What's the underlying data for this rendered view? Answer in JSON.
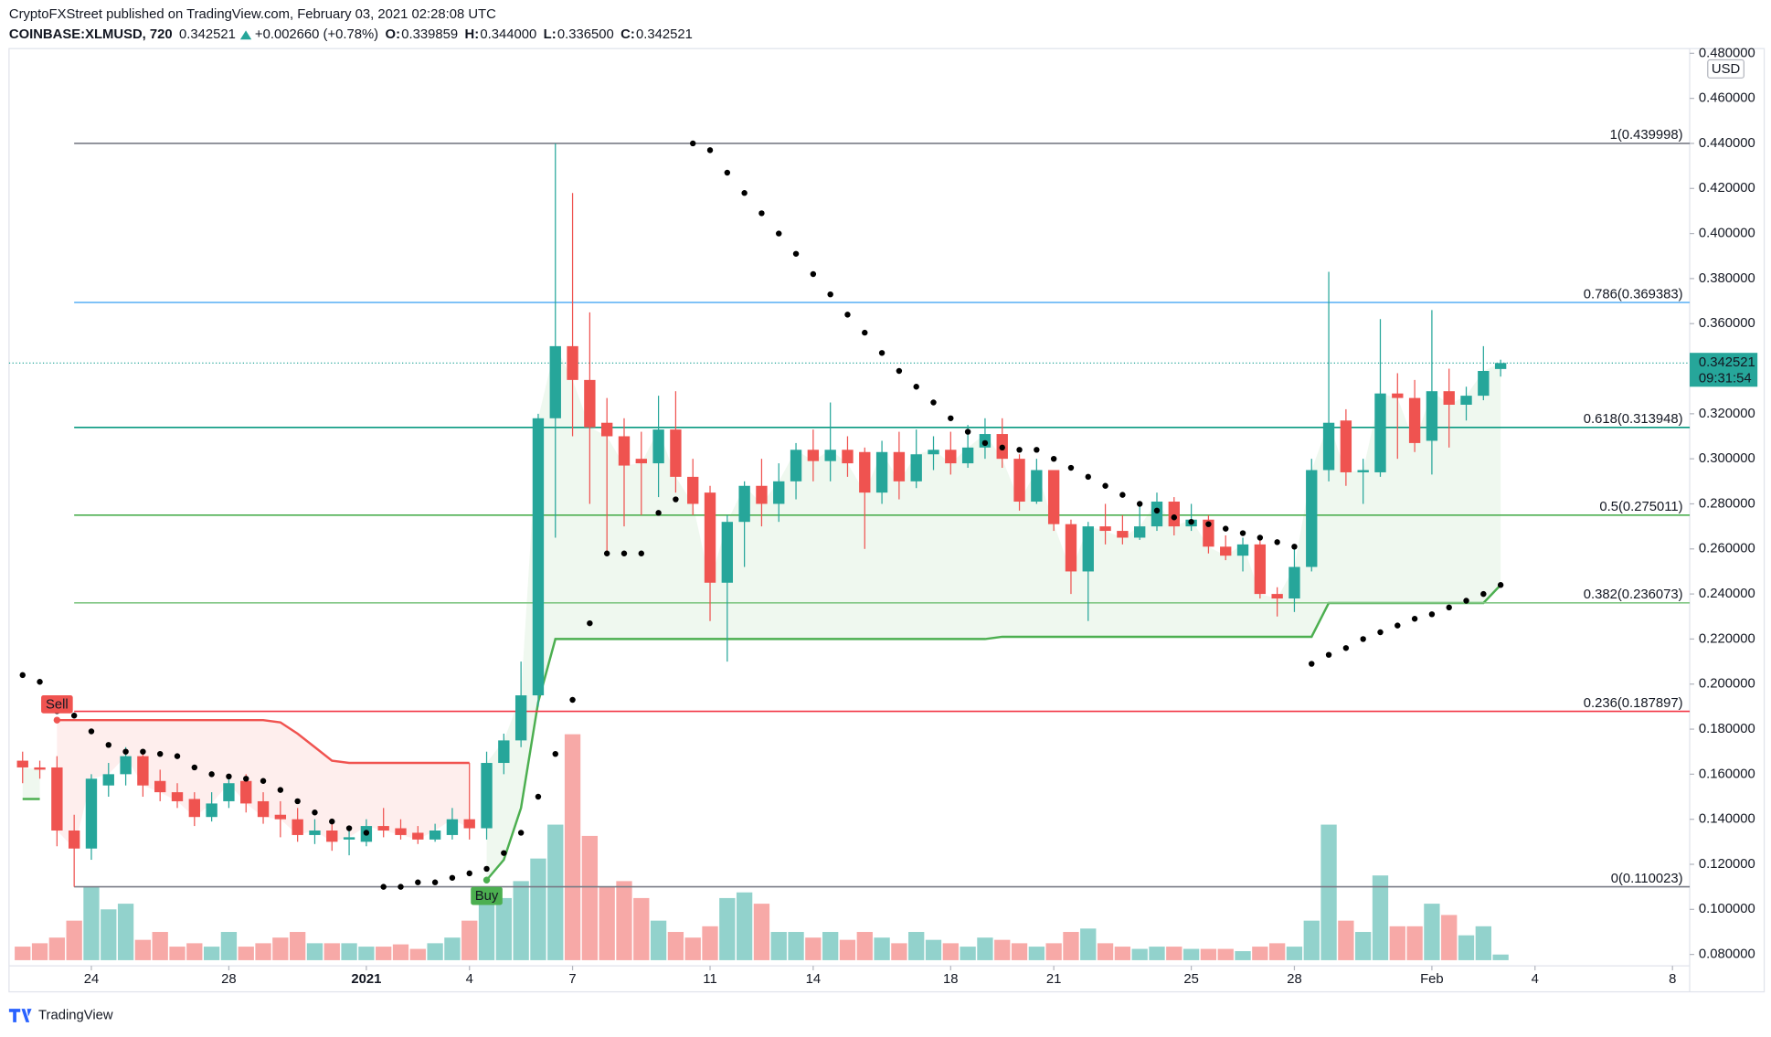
{
  "header": {
    "publisher": "CryptoFXStreet published on TradingView.com, February 03, 2021 02:28:08 UTC",
    "symbol": "COINBASE:XLMUSD, 720",
    "last": "0.342521",
    "change": "+0.002660 (+0.78%)",
    "o_label": "O:",
    "o": "0.339859",
    "h_label": "H:",
    "h": "0.344000",
    "l_label": "L:",
    "l": "0.336500",
    "c_label": "C:",
    "c": "0.342521"
  },
  "footer": {
    "brand": "TradingView"
  },
  "chart_data": {
    "type": "candlestick",
    "currency": "USD",
    "price_label": "0.342521",
    "countdown": "09:31:54",
    "up_color": "#26a69a",
    "down_color": "#ef5350",
    "ylim": [
      0.0634,
      0.4821
    ],
    "xlim": [
      -0.79,
      97
    ],
    "yticks": [
      {
        "value": 0.08,
        "label": "0.080000"
      },
      {
        "value": 0.1,
        "label": "0.100000"
      },
      {
        "value": 0.12,
        "label": "0.120000"
      },
      {
        "value": 0.14,
        "label": "0.140000"
      },
      {
        "value": 0.16,
        "label": "0.160000"
      },
      {
        "value": 0.18,
        "label": "0.180000"
      },
      {
        "value": 0.2,
        "label": "0.200000"
      },
      {
        "value": 0.22,
        "label": "0.220000"
      },
      {
        "value": 0.24,
        "label": "0.240000"
      },
      {
        "value": 0.26,
        "label": "0.260000"
      },
      {
        "value": 0.28,
        "label": "0.280000"
      },
      {
        "value": 0.3,
        "label": "0.300000"
      },
      {
        "value": 0.32,
        "label": "0.320000"
      },
      {
        "value": 0.34,
        "label": "0.340000"
      },
      {
        "value": 0.36,
        "label": "0.360000"
      },
      {
        "value": 0.38,
        "label": "0.380000"
      },
      {
        "value": 0.4,
        "label": "0.400000"
      },
      {
        "value": 0.42,
        "label": "0.420000"
      },
      {
        "value": 0.44,
        "label": "0.440000"
      },
      {
        "value": 0.46,
        "label": "0.460000"
      },
      {
        "value": 0.48,
        "label": "0.480000"
      }
    ],
    "xticks": [
      {
        "value": 4,
        "label": "24"
      },
      {
        "value": 12,
        "label": "28"
      },
      {
        "value": 20,
        "label": "2021",
        "bold": true
      },
      {
        "value": 26,
        "label": "4"
      },
      {
        "value": 32,
        "label": "7"
      },
      {
        "value": 40,
        "label": "11"
      },
      {
        "value": 46,
        "label": "14"
      },
      {
        "value": 54,
        "label": "18"
      },
      {
        "value": 60,
        "label": "21"
      },
      {
        "value": 68,
        "label": "25"
      },
      {
        "value": 74,
        "label": "28"
      },
      {
        "value": 82,
        "label": "Feb"
      },
      {
        "value": 88,
        "label": "4"
      },
      {
        "value": 96,
        "label": "8"
      }
    ],
    "open": [
      0.166,
      0.163,
      0.163,
      0.135,
      0.127,
      0.155,
      0.16,
      0.168,
      0.157,
      0.152,
      0.149,
      0.141,
      0.148,
      0.157,
      0.148,
      0.142,
      0.14,
      0.133,
      0.135,
      0.131,
      0.13,
      0.137,
      0.136,
      0.134,
      0.131,
      0.133,
      0.14,
      0.136,
      0.165,
      0.175,
      0.195,
      0.318,
      0.35,
      0.335,
      0.316,
      0.31,
      0.3,
      0.298,
      0.313,
      0.292,
      0.285,
      0.245,
      0.272,
      0.288,
      0.28,
      0.29,
      0.304,
      0.299,
      0.304,
      0.303,
      0.285,
      0.303,
      0.29,
      0.302,
      0.304,
      0.298,
      0.305,
      0.311,
      0.3,
      0.281,
      0.295,
      0.271,
      0.25,
      0.27,
      0.268,
      0.265,
      0.27,
      0.281,
      0.27,
      0.273,
      0.261,
      0.257,
      0.262,
      0.24,
      0.238,
      0.252,
      0.295,
      0.317,
      0.294,
      0.294,
      0.329,
      0.327,
      0.308,
      0.33,
      0.324,
      0.328,
      0.339859
    ],
    "high": [
      0.17,
      0.166,
      0.168,
      0.142,
      0.16,
      0.165,
      0.172,
      0.17,
      0.162,
      0.156,
      0.152,
      0.152,
      0.16,
      0.16,
      0.152,
      0.148,
      0.145,
      0.14,
      0.138,
      0.135,
      0.14,
      0.145,
      0.14,
      0.137,
      0.138,
      0.145,
      0.165,
      0.17,
      0.178,
      0.21,
      0.32,
      0.44,
      0.418,
      0.365,
      0.327,
      0.318,
      0.312,
      0.328,
      0.33,
      0.3,
      0.288,
      0.275,
      0.29,
      0.3,
      0.298,
      0.307,
      0.313,
      0.325,
      0.31,
      0.305,
      0.308,
      0.312,
      0.313,
      0.31,
      0.312,
      0.315,
      0.318,
      0.318,
      0.302,
      0.3,
      0.295,
      0.273,
      0.272,
      0.28,
      0.275,
      0.28,
      0.285,
      0.283,
      0.28,
      0.275,
      0.266,
      0.265,
      0.264,
      0.243,
      0.262,
      0.3,
      0.383,
      0.322,
      0.3,
      0.362,
      0.338,
      0.335,
      0.366,
      0.34,
      0.332,
      0.35,
      0.344
    ],
    "low": [
      0.156,
      0.158,
      0.128,
      0.11,
      0.122,
      0.15,
      0.155,
      0.15,
      0.148,
      0.145,
      0.137,
      0.139,
      0.145,
      0.143,
      0.138,
      0.132,
      0.13,
      0.129,
      0.126,
      0.124,
      0.128,
      0.132,
      0.131,
      0.129,
      0.13,
      0.131,
      0.131,
      0.131,
      0.16,
      0.172,
      0.19,
      0.265,
      0.31,
      0.28,
      0.258,
      0.27,
      0.275,
      0.283,
      0.285,
      0.275,
      0.228,
      0.21,
      0.252,
      0.27,
      0.272,
      0.282,
      0.29,
      0.29,
      0.292,
      0.26,
      0.28,
      0.282,
      0.287,
      0.295,
      0.293,
      0.296,
      0.3,
      0.296,
      0.277,
      0.28,
      0.268,
      0.24,
      0.228,
      0.262,
      0.262,
      0.264,
      0.268,
      0.266,
      0.268,
      0.258,
      0.255,
      0.25,
      0.238,
      0.23,
      0.232,
      0.25,
      0.29,
      0.288,
      0.28,
      0.292,
      0.3,
      0.303,
      0.293,
      0.305,
      0.317,
      0.326,
      0.3365
    ],
    "close": [
      0.163,
      0.162,
      0.135,
      0.127,
      0.158,
      0.16,
      0.168,
      0.155,
      0.152,
      0.148,
      0.141,
      0.147,
      0.156,
      0.147,
      0.141,
      0.14,
      0.133,
      0.135,
      0.13,
      0.132,
      0.137,
      0.135,
      0.133,
      0.131,
      0.135,
      0.14,
      0.136,
      0.165,
      0.175,
      0.195,
      0.318,
      0.35,
      0.335,
      0.314,
      0.31,
      0.297,
      0.298,
      0.313,
      0.292,
      0.28,
      0.245,
      0.272,
      0.288,
      0.28,
      0.29,
      0.304,
      0.299,
      0.304,
      0.298,
      0.285,
      0.303,
      0.29,
      0.302,
      0.304,
      0.298,
      0.305,
      0.311,
      0.3,
      0.281,
      0.295,
      0.271,
      0.25,
      0.27,
      0.268,
      0.265,
      0.27,
      0.281,
      0.27,
      0.273,
      0.261,
      0.257,
      0.262,
      0.24,
      0.238,
      0.252,
      0.295,
      0.316,
      0.294,
      0.295,
      0.329,
      0.327,
      0.307,
      0.33,
      0.324,
      0.328,
      0.339,
      0.342521
    ],
    "volume": [
      12,
      15,
      20,
      35,
      65,
      45,
      50,
      18,
      25,
      12,
      15,
      12,
      25,
      12,
      15,
      20,
      25,
      15,
      15,
      15,
      12,
      12,
      14,
      10,
      15,
      20,
      35,
      50,
      55,
      70,
      90,
      120,
      200,
      110,
      65,
      70,
      55,
      35,
      25,
      20,
      30,
      55,
      60,
      50,
      25,
      25,
      20,
      25,
      18,
      25,
      20,
      15,
      25,
      18,
      15,
      12,
      20,
      18,
      15,
      12,
      15,
      25,
      28,
      15,
      12,
      10,
      12,
      12,
      10,
      10,
      10,
      8,
      12,
      15,
      12,
      35,
      120,
      35,
      25,
      75,
      30,
      30,
      50,
      40,
      22,
      30,
      5
    ],
    "psar": [
      0.204,
      0.201,
      0.188,
      0.186,
      0.179,
      0.173,
      0.17,
      0.17,
      0.169,
      0.168,
      0.163,
      0.16,
      0.159,
      0.158,
      0.157,
      0.153,
      0.148,
      0.143,
      0.139,
      0.136,
      0.134,
      0.11,
      0.11,
      0.112,
      0.112,
      0.114,
      0.116,
      0.118,
      0.125,
      0.134,
      0.15,
      0.169,
      0.193,
      0.227,
      0.258,
      0.258,
      0.258,
      0.276,
      0.282,
      0.44,
      0.437,
      0.427,
      0.418,
      0.409,
      0.4,
      0.391,
      0.382,
      0.373,
      0.364,
      0.356,
      0.347,
      0.339,
      0.332,
      0.325,
      0.318,
      0.312,
      0.307,
      0.305,
      0.304,
      0.304,
      0.3,
      0.296,
      0.292,
      0.288,
      0.284,
      0.28,
      0.277,
      0.274,
      0.272,
      0.271,
      0.269,
      0.267,
      0.265,
      0.263,
      0.261,
      0.209,
      0.213,
      0.216,
      0.22,
      0.223,
      0.226,
      0.229,
      0.231,
      0.234,
      0.237,
      0.24,
      0.244
    ],
    "trend": [
      {
        "color": "#4caf50",
        "fill": "rgba(76,175,80,0.09)",
        "values": [
          0.149,
          0.149,
          null,
          null,
          null,
          null,
          null,
          null,
          null,
          null,
          null,
          null,
          null,
          null,
          null,
          null,
          null,
          null,
          null,
          null,
          null,
          null,
          null,
          null,
          null,
          null,
          null,
          0.113,
          0.122,
          0.145,
          0.192,
          0.22,
          0.22,
          0.22,
          0.22,
          0.22,
          0.22,
          0.22,
          0.22,
          0.22,
          0.22,
          0.22,
          0.22,
          0.22,
          0.22,
          0.22,
          0.22,
          0.22,
          0.22,
          0.22,
          0.22,
          0.22,
          0.22,
          0.22,
          0.22,
          0.22,
          0.22,
          0.221,
          0.221,
          0.221,
          0.221,
          0.221,
          0.221,
          0.221,
          0.221,
          0.221,
          0.221,
          0.221,
          0.221,
          0.221,
          0.221,
          0.221,
          0.221,
          0.221,
          0.221,
          0.221,
          0.236,
          0.236,
          0.236,
          0.236,
          0.236,
          0.236,
          0.236,
          0.236,
          0.236,
          0.236,
          0.244
        ]
      },
      {
        "color": "#f05350",
        "fill": "rgba(244,67,54,0.09)",
        "values": [
          null,
          null,
          0.184,
          0.184,
          0.184,
          0.184,
          0.184,
          0.184,
          0.184,
          0.184,
          0.184,
          0.184,
          0.184,
          0.184,
          0.184,
          0.183,
          0.178,
          0.172,
          0.166,
          0.165,
          0.165,
          0.165,
          0.165,
          0.165,
          0.165,
          0.165,
          0.165,
          null,
          null,
          null,
          null,
          null,
          null,
          null,
          null,
          null,
          null,
          null,
          null,
          null,
          null,
          null,
          null,
          null,
          null,
          null,
          null,
          null,
          null,
          null,
          null,
          null,
          null,
          null,
          null,
          null,
          null,
          null,
          null,
          null,
          null,
          null,
          null,
          null,
          null,
          null,
          null,
          null,
          null,
          null,
          null,
          null,
          null,
          null,
          null,
          null,
          null,
          null,
          null,
          null,
          null,
          null,
          null,
          null,
          null,
          null,
          null
        ]
      }
    ],
    "signals": [
      {
        "label": "Sell",
        "index": 2,
        "color": "#f05350",
        "side": "above"
      },
      {
        "label": "Buy",
        "index": 27,
        "color": "#4caf50",
        "side": "below"
      }
    ],
    "fib_start": 3,
    "fib": [
      {
        "label": "1(0.439998)",
        "value": 0.439998,
        "color": "#787b86"
      },
      {
        "label": "0.786(0.369383)",
        "value": 0.369383,
        "color": "#64b5f6"
      },
      {
        "label": "0.618(0.313948)",
        "value": 0.313948,
        "color": "#089981"
      },
      {
        "label": "0.5(0.275011)",
        "value": 0.275011,
        "color": "#4caf50"
      },
      {
        "label": "0.382(0.236073)",
        "value": 0.236073,
        "color": "#81c784"
      },
      {
        "label": "0.236(0.187897)",
        "value": 0.187897,
        "color": "#f23645"
      },
      {
        "label": "0(0.110023)",
        "value": 0.110023,
        "color": "#787b86"
      }
    ]
  }
}
